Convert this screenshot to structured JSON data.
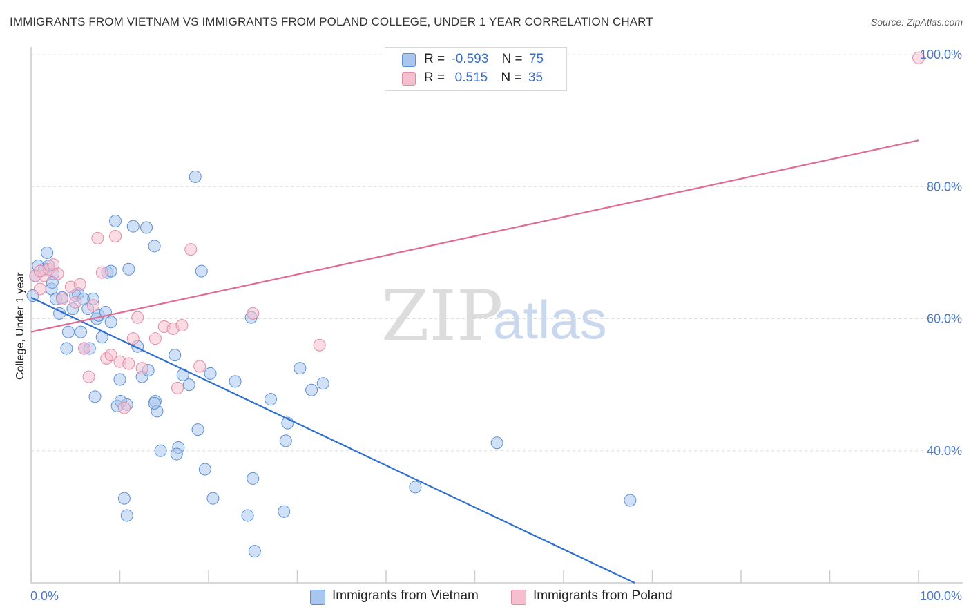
{
  "header": {
    "title": "IMMIGRANTS FROM VIETNAM VS IMMIGRANTS FROM POLAND COLLEGE, UNDER 1 YEAR CORRELATION CHART",
    "source": "Source: ZipAtlas.com"
  },
  "legend": {
    "rows": [
      {
        "r_label": "R =",
        "r_value": "-0.593",
        "n_label": "N =",
        "n_value": "75"
      },
      {
        "r_label": "R =",
        "r_value": " 0.515",
        "n_label": "N =",
        "n_value": "35"
      }
    ]
  },
  "bottom_legend": {
    "items": [
      {
        "label": "Immigrants from Vietnam"
      },
      {
        "label": "Immigrants from Poland"
      }
    ]
  },
  "watermark": {
    "zip": "ZIP",
    "atlas": "atlas"
  },
  "colors": {
    "vietnam_fill": "#a9c6ef",
    "vietnam_stroke": "#5b8fd6",
    "vietnam_line": "#2d6fce",
    "poland_fill": "#f6bfd0",
    "poland_stroke": "#e38aa6",
    "poland_line": "#e06a92",
    "grid": "#dcdcdc",
    "axis": "#cccccc",
    "tick_text": "#4a79c9"
  },
  "chart_data": {
    "type": "scatter",
    "title": "IMMIGRANTS FROM VIETNAM VS IMMIGRANTS FROM POLAND COLLEGE, UNDER 1 YEAR CORRELATION CHART",
    "xlabel": "",
    "ylabel": "College, Under 1 year",
    "xlim": [
      0,
      100
    ],
    "ylim": [
      20,
      100
    ],
    "x_tick_labels": [
      "0.0%",
      "100.0%"
    ],
    "y_ticks": [
      40,
      60,
      80,
      100
    ],
    "y_tick_labels": [
      "40.0%",
      "60.0%",
      "80.0%",
      "100.0%"
    ],
    "grid": true,
    "legend_position": "top-center",
    "series": [
      {
        "name": "Immigrants from Vietnam",
        "r": -0.593,
        "n": 75,
        "trend": {
          "x": [
            0,
            68
          ],
          "y": [
            63.2,
            20
          ]
        },
        "points": [
          [
            0.2,
            63.5
          ],
          [
            0.5,
            66.5
          ],
          [
            0.8,
            68.0
          ],
          [
            1.5,
            67.5
          ],
          [
            1.8,
            70.0
          ],
          [
            2.0,
            68.0
          ],
          [
            2.3,
            64.5
          ],
          [
            2.5,
            66.8
          ],
          [
            2.8,
            63.0
          ],
          [
            3.2,
            60.8
          ],
          [
            3.5,
            63.2
          ],
          [
            4.2,
            58.0
          ],
          [
            4.0,
            55.5
          ],
          [
            4.7,
            61.5
          ],
          [
            5.0,
            63.5
          ],
          [
            5.3,
            63.8
          ],
          [
            5.6,
            58.0
          ],
          [
            6.0,
            55.5
          ],
          [
            6.6,
            55.5
          ],
          [
            7.0,
            63.0
          ],
          [
            7.4,
            60.0
          ],
          [
            7.6,
            60.5
          ],
          [
            8.0,
            57.2
          ],
          [
            8.4,
            61.0
          ],
          [
            8.6,
            67.0
          ],
          [
            9.0,
            67.2
          ],
          [
            9.5,
            74.8
          ],
          [
            11.0,
            67.5
          ],
          [
            11.5,
            74.0
          ],
          [
            12.0,
            55.8
          ],
          [
            13.0,
            73.8
          ],
          [
            13.9,
            71.0
          ],
          [
            16.2,
            54.5
          ],
          [
            17.8,
            50.0
          ],
          [
            18.5,
            81.5
          ],
          [
            19.2,
            67.2
          ],
          [
            23.0,
            50.5
          ],
          [
            24.8,
            60.2
          ],
          [
            27.0,
            47.8
          ],
          [
            28.9,
            44.2
          ],
          [
            30.3,
            52.5
          ],
          [
            31.6,
            49.2
          ],
          [
            6.4,
            61.5
          ],
          [
            7.2,
            48.2
          ],
          [
            9.7,
            46.8
          ],
          [
            10.0,
            50.8
          ],
          [
            10.8,
            47.0
          ],
          [
            12.5,
            51.2
          ],
          [
            13.2,
            52.2
          ],
          [
            14.0,
            47.5
          ],
          [
            14.2,
            46.0
          ],
          [
            14.6,
            40.0
          ],
          [
            16.6,
            40.5
          ],
          [
            16.4,
            39.5
          ],
          [
            18.8,
            43.2
          ],
          [
            19.6,
            37.2
          ],
          [
            20.5,
            32.8
          ],
          [
            25.0,
            35.8
          ],
          [
            24.4,
            30.2
          ],
          [
            28.7,
            41.5
          ],
          [
            28.5,
            30.8
          ],
          [
            32.9,
            50.2
          ],
          [
            10.1,
            47.5
          ],
          [
            13.9,
            47.2
          ],
          [
            17.1,
            51.5
          ],
          [
            20.2,
            51.7
          ],
          [
            10.5,
            32.8
          ],
          [
            10.8,
            30.2
          ],
          [
            25.2,
            24.8
          ],
          [
            43.3,
            34.5
          ],
          [
            52.5,
            41.2
          ],
          [
            67.5,
            32.5
          ],
          [
            9.0,
            59.5
          ],
          [
            5.9,
            63.0
          ],
          [
            2.4,
            65.5
          ]
        ]
      },
      {
        "name": "Immigrants from Poland",
        "r": 0.515,
        "n": 35,
        "trend": {
          "x": [
            0,
            100
          ],
          "y": [
            58.0,
            87.0
          ]
        },
        "points": [
          [
            0.5,
            66.5
          ],
          [
            1.0,
            64.5
          ],
          [
            1.5,
            66.5
          ],
          [
            2.0,
            67.5
          ],
          [
            2.5,
            68.2
          ],
          [
            3.0,
            66.8
          ],
          [
            3.5,
            63.0
          ],
          [
            4.5,
            64.8
          ],
          [
            5.0,
            62.5
          ],
          [
            5.5,
            65.2
          ],
          [
            6.0,
            55.5
          ],
          [
            6.5,
            51.2
          ],
          [
            7.0,
            62.0
          ],
          [
            7.5,
            72.2
          ],
          [
            8.0,
            67.0
          ],
          [
            8.5,
            54.0
          ],
          [
            9.0,
            54.5
          ],
          [
            9.5,
            72.5
          ],
          [
            10.0,
            53.5
          ],
          [
            10.5,
            46.5
          ],
          [
            11.0,
            53.2
          ],
          [
            11.5,
            57.0
          ],
          [
            12.0,
            60.2
          ],
          [
            12.5,
            52.5
          ],
          [
            14.0,
            57.0
          ],
          [
            15.0,
            58.8
          ],
          [
            16.0,
            58.5
          ],
          [
            17.0,
            59.0
          ],
          [
            16.5,
            49.5
          ],
          [
            18.0,
            70.5
          ],
          [
            19.0,
            52.8
          ],
          [
            25.0,
            60.8
          ],
          [
            32.5,
            56.0
          ],
          [
            100.0,
            99.5
          ],
          [
            1.0,
            67.2
          ]
        ]
      }
    ]
  }
}
